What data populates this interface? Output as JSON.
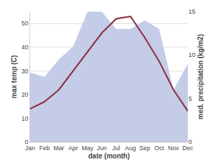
{
  "chart_data": {
    "type": "line",
    "categories": [
      "Jan",
      "Feb",
      "Mar",
      "Apr",
      "May",
      "Jun",
      "Jul",
      "Aug",
      "Sep",
      "Oct",
      "Nov",
      "Dec"
    ],
    "series": [
      {
        "type": "area",
        "axis": "y2",
        "color": "#c5cce8",
        "values": [
          8,
          7.5,
          9.5,
          11,
          15,
          15,
          13,
          13,
          14,
          13,
          6,
          9
        ]
      },
      {
        "type": "line",
        "color": "#8b3344",
        "values": [
          14,
          17,
          22,
          30,
          38,
          46,
          52,
          53,
          44,
          34,
          22,
          13
        ]
      }
    ],
    "x_label": "date (month)",
    "y_label": "max temp (C)",
    "y2_label": "med. precipitation (kg/m2)",
    "ylim": [
      0,
      55
    ],
    "yticks": [
      0,
      10,
      20,
      30,
      40,
      50
    ],
    "y2lim": [
      0,
      15
    ],
    "y2ticks": [
      0,
      5,
      10,
      15
    ],
    "grid": true
  }
}
